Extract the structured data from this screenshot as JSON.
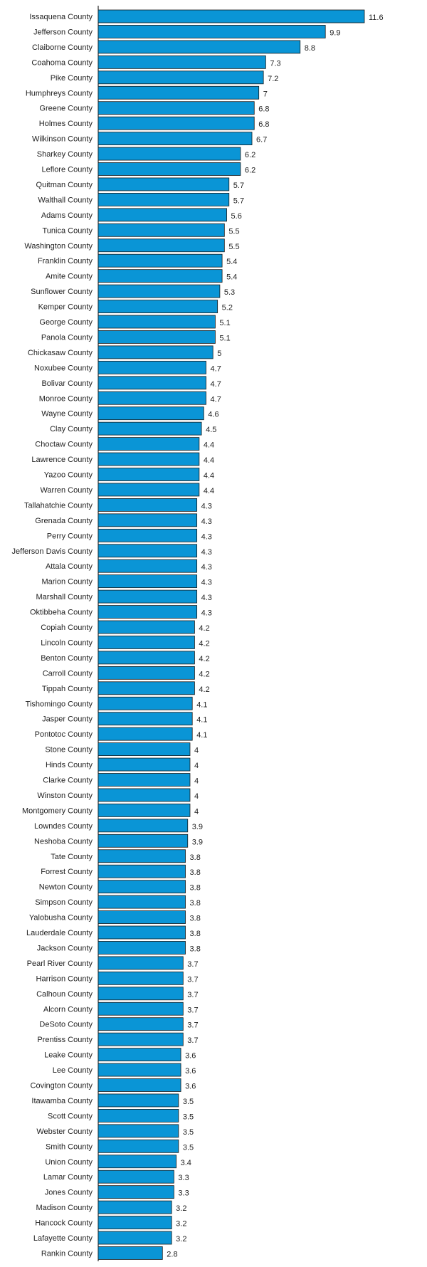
{
  "chart_data": {
    "type": "bar",
    "orientation": "horizontal",
    "title": "",
    "xlabel": "",
    "ylabel": "",
    "grid": false,
    "categories": [
      "Issaquena County",
      "Jefferson County",
      "Claiborne County",
      "Coahoma County",
      "Pike County",
      "Humphreys County",
      "Greene County",
      "Holmes County",
      "Wilkinson County",
      "Sharkey County",
      "Leflore County",
      "Quitman County",
      "Walthall County",
      "Adams County",
      "Tunica County",
      "Washington County",
      "Franklin County",
      "Amite County",
      "Sunflower County",
      "Kemper County",
      "George County",
      "Panola County",
      "Chickasaw County",
      "Noxubee County",
      "Bolivar County",
      "Monroe County",
      "Wayne County",
      "Clay County",
      "Choctaw County",
      "Lawrence County",
      "Yazoo County",
      "Warren County",
      "Tallahatchie County",
      "Grenada County",
      "Perry County",
      "Jefferson Davis County",
      "Attala County",
      "Marion County",
      "Marshall County",
      "Oktibbeha County",
      "Copiah County",
      "Lincoln County",
      "Benton County",
      "Carroll County",
      "Tippah County",
      "Tishomingo County",
      "Jasper County",
      "Pontotoc County",
      "Stone County",
      "Hinds County",
      "Clarke County",
      "Winston County",
      "Montgomery County",
      "Lowndes County",
      "Neshoba County",
      "Tate County",
      "Forrest County",
      "Newton County",
      "Simpson County",
      "Yalobusha County",
      "Lauderdale County",
      "Jackson County",
      "Pearl River County",
      "Harrison County",
      "Calhoun County",
      "Alcorn County",
      "DeSoto County",
      "Prentiss County",
      "Leake County",
      "Lee County",
      "Covington County",
      "Itawamba County",
      "Scott County",
      "Webster County",
      "Smith County",
      "Union County",
      "Lamar County",
      "Jones County",
      "Madison County",
      "Hancock County",
      "Lafayette County",
      "Rankin County"
    ],
    "values": [
      11.6,
      9.9,
      8.8,
      7.3,
      7.2,
      7,
      6.8,
      6.8,
      6.7,
      6.2,
      6.2,
      5.7,
      5.7,
      5.6,
      5.5,
      5.5,
      5.4,
      5.4,
      5.3,
      5.2,
      5.1,
      5.1,
      5,
      4.7,
      4.7,
      4.7,
      4.6,
      4.5,
      4.4,
      4.4,
      4.4,
      4.4,
      4.3,
      4.3,
      4.3,
      4.3,
      4.3,
      4.3,
      4.3,
      4.3,
      4.2,
      4.2,
      4.2,
      4.2,
      4.2,
      4.1,
      4.1,
      4.1,
      4,
      4,
      4,
      4,
      4,
      3.9,
      3.9,
      3.8,
      3.8,
      3.8,
      3.8,
      3.8,
      3.8,
      3.8,
      3.7,
      3.7,
      3.7,
      3.7,
      3.7,
      3.7,
      3.6,
      3.6,
      3.6,
      3.5,
      3.5,
      3.5,
      3.5,
      3.4,
      3.3,
      3.3,
      3.2,
      3.2,
      3.2,
      2.8
    ],
    "xlim": [
      0,
      11.6
    ],
    "colors": {
      "bar": "#0a95d6",
      "bar_stroke": "#1a1a1a",
      "axis": "#000000",
      "text": "#222222"
    }
  }
}
